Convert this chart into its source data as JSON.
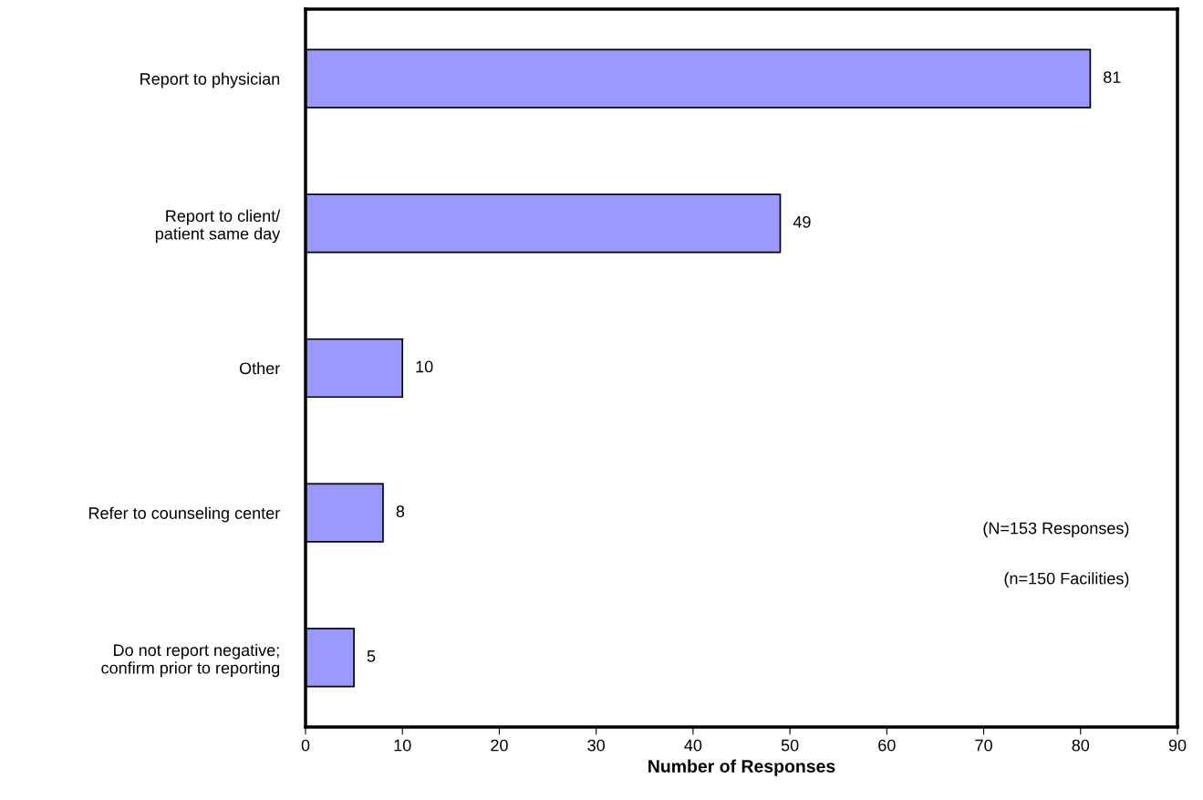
{
  "chart_data": {
    "type": "bar",
    "orientation": "horizontal",
    "categories": [
      "Report to physician",
      "Report to client/\npatient same day",
      "Other",
      "Refer to counseling center",
      "Do not report negative;\nconfirm prior to reporting"
    ],
    "values": [
      81,
      49,
      10,
      8,
      5
    ],
    "color": "#9999ff",
    "xlabel": "Number of Responses",
    "xlim": [
      0,
      90
    ],
    "xticks": [
      0,
      10,
      20,
      30,
      40,
      50,
      60,
      70,
      80,
      90
    ],
    "data_labels": true,
    "grid": false,
    "legend": false,
    "annotations": [
      "(N=153 Responses)",
      "(n=150 Facilities)"
    ]
  }
}
